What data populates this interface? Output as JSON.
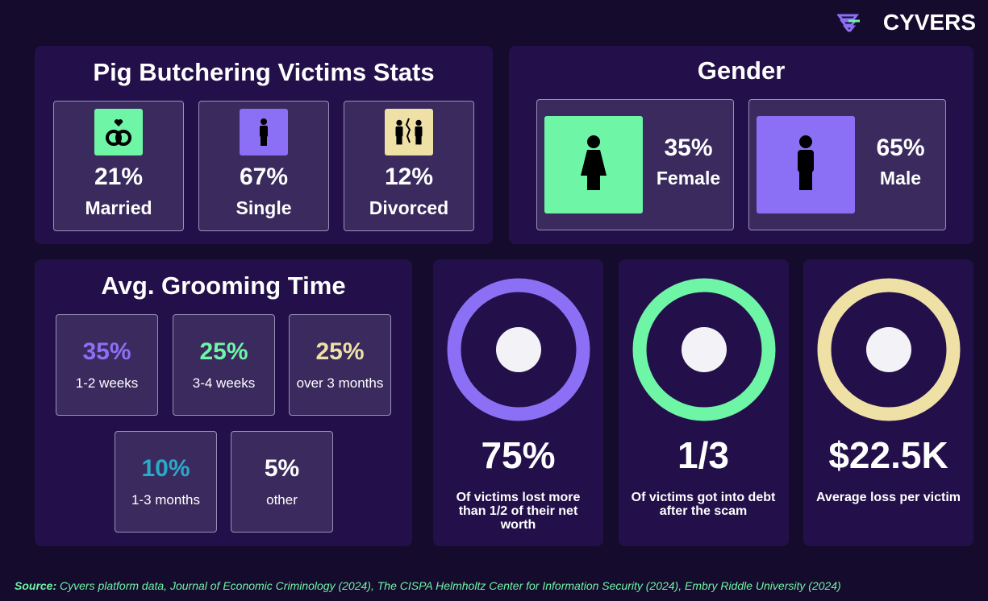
{
  "brand": "CYVERS",
  "stats": {
    "title": "Pig Butchering Victims Stats",
    "items": [
      {
        "value": "21%",
        "label": "Married"
      },
      {
        "value": "67%",
        "label": "Single"
      },
      {
        "value": "12%",
        "label": "Divorced"
      }
    ]
  },
  "gender": {
    "title": "Gender",
    "items": [
      {
        "value": "35%",
        "label": "Female"
      },
      {
        "value": "65%",
        "label": "Male"
      }
    ]
  },
  "grooming": {
    "title": "Avg. Grooming Time",
    "items": [
      {
        "value": "35%",
        "label": "1-2 weeks"
      },
      {
        "value": "25%",
        "label": "3-4 weeks"
      },
      {
        "value": "25%",
        "label": "over 3 months"
      },
      {
        "value": "10%",
        "label": "1-3 months"
      },
      {
        "value": "5%",
        "label": "other"
      }
    ]
  },
  "facts": [
    {
      "value": "75%",
      "label": "Of victims lost more than 1/2 of their net worth"
    },
    {
      "value": "1/3",
      "label": "Of victims got into debt after the scam"
    },
    {
      "value": "$22.5K",
      "label": "Average loss per victim"
    }
  ],
  "source": {
    "label": "Source:",
    "text": "Cyvers platform data, Journal of Economic Criminology (2024), The CISPA Helmholtz Center for Information Security (2024), Embry Riddle University (2024)"
  }
}
